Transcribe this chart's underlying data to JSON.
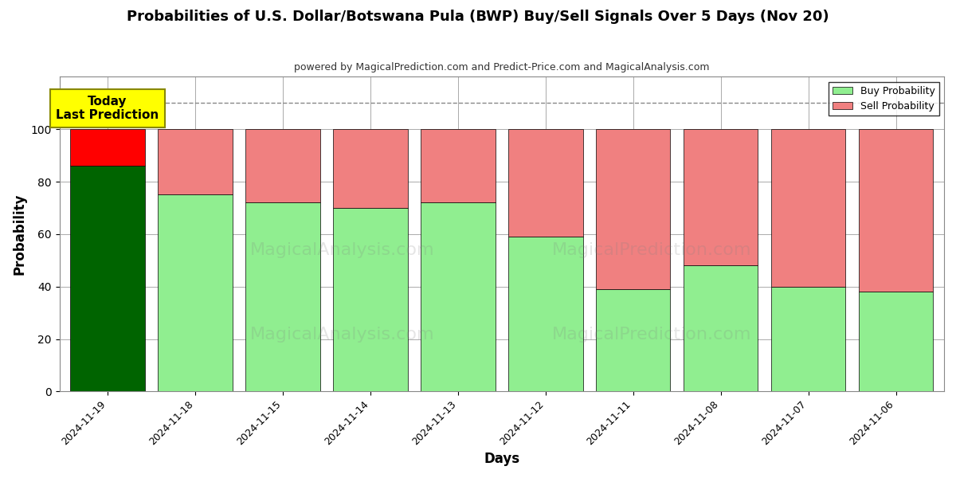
{
  "title": "Probabilities of U.S. Dollar/Botswana Pula (BWP) Buy/Sell Signals Over 5 Days (Nov 20)",
  "subtitle": "powered by MagicalPrediction.com and Predict-Price.com and MagicalAnalysis.com",
  "xlabel": "Days",
  "ylabel": "Probability",
  "dates": [
    "2024-11-19",
    "2024-11-18",
    "2024-11-15",
    "2024-11-14",
    "2024-11-13",
    "2024-11-12",
    "2024-11-11",
    "2024-11-08",
    "2024-11-07",
    "2024-11-06"
  ],
  "buy_values": [
    86,
    75,
    72,
    70,
    72,
    59,
    39,
    48,
    40,
    38
  ],
  "sell_values": [
    14,
    25,
    28,
    30,
    28,
    41,
    61,
    52,
    60,
    62
  ],
  "today_buy_color": "#006400",
  "today_sell_color": "#FF0000",
  "buy_color": "#90EE90",
  "sell_color": "#F08080",
  "today_annotation_bg": "#FFFF00",
  "today_annotation_text": "Today\nLast Prediction",
  "dashed_line_y": 110,
  "ylim": [
    0,
    120
  ],
  "yticks": [
    0,
    20,
    40,
    60,
    80,
    100
  ],
  "figsize": [
    12,
    6
  ],
  "dpi": 100,
  "background_color": "#ffffff",
  "grid_color": "#aaaaaa",
  "bar_width": 0.85
}
